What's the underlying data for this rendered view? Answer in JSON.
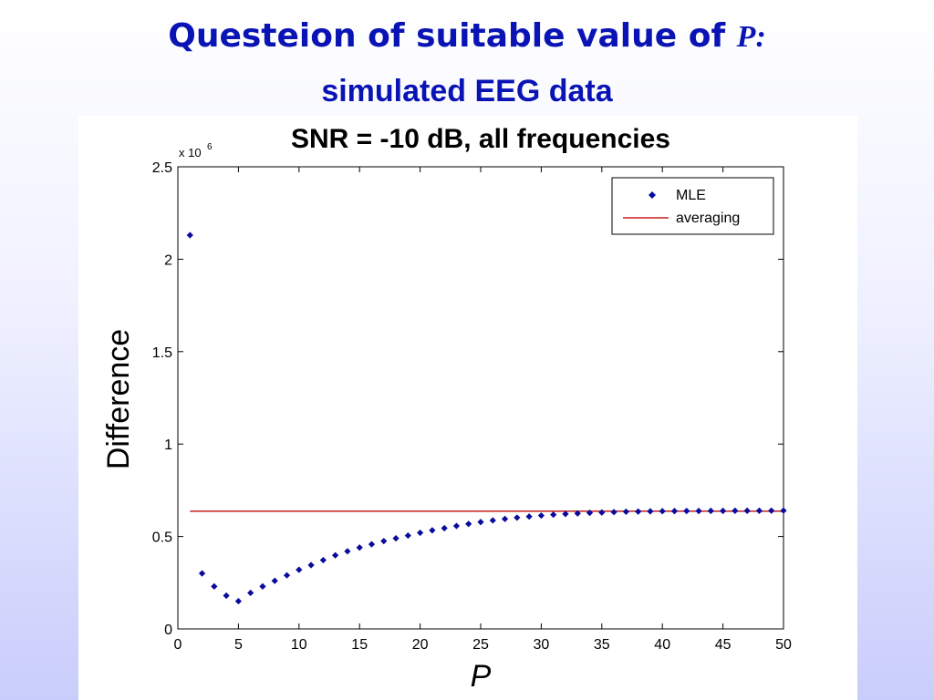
{
  "slide": {
    "title_prefix": "Questeion of suitable value of",
    "title_var": "P:",
    "subtitle": "simulated EEG data"
  },
  "chart_data": {
    "type": "scatter",
    "title": "SNR = -10 dB, all frequencies",
    "xlabel": "P",
    "ylabel": "Difference",
    "y_scale_label": "x 10",
    "y_scale_exponent": "6",
    "xlim": [
      0,
      50
    ],
    "ylim": [
      0,
      2500000
    ],
    "x_ticks": [
      0,
      5,
      10,
      15,
      20,
      25,
      30,
      35,
      40,
      45,
      50
    ],
    "x_tick_labels": [
      "0",
      "5",
      "10",
      "15",
      "20",
      "25",
      "30",
      "35",
      "40",
      "45",
      "50"
    ],
    "y_ticks": [
      0,
      500000,
      1000000,
      1500000,
      2000000,
      2500000
    ],
    "y_tick_labels": [
      "0",
      "0.5",
      "1",
      "1.5",
      "2",
      "2.5"
    ],
    "grid": false,
    "legend": {
      "placement": "top-right",
      "entries": [
        "MLE",
        "averaging"
      ]
    },
    "colors": {
      "mle": "#0a0a9c",
      "averaging": "#c81e1e"
    },
    "series": [
      {
        "name": "MLE",
        "kind": "markers",
        "x": [
          1,
          2,
          3,
          4,
          5,
          6,
          7,
          8,
          9,
          10,
          11,
          12,
          13,
          14,
          15,
          16,
          17,
          18,
          19,
          20,
          21,
          22,
          23,
          24,
          25,
          26,
          27,
          28,
          29,
          30,
          31,
          32,
          33,
          34,
          35,
          36,
          37,
          38,
          39,
          40,
          41,
          42,
          43,
          44,
          45,
          46,
          47,
          48,
          49,
          50
        ],
        "y": [
          2130000,
          300000,
          230000,
          180000,
          150000,
          195000,
          230000,
          260000,
          290000,
          320000,
          345000,
          372000,
          398000,
          420000,
          440000,
          458000,
          475000,
          490000,
          505000,
          520000,
          533000,
          545000,
          557000,
          568000,
          578000,
          587000,
          595000,
          602000,
          608000,
          613000,
          618000,
          622000,
          625000,
          628000,
          630000,
          632000,
          634000,
          635000,
          636000,
          637000,
          637500,
          638000,
          638000,
          638500,
          638500,
          639000,
          639000,
          639000,
          639500,
          640000
        ]
      },
      {
        "name": "averaging",
        "kind": "line",
        "x": [
          1,
          50
        ],
        "y": [
          637000,
          637000
        ]
      }
    ]
  }
}
